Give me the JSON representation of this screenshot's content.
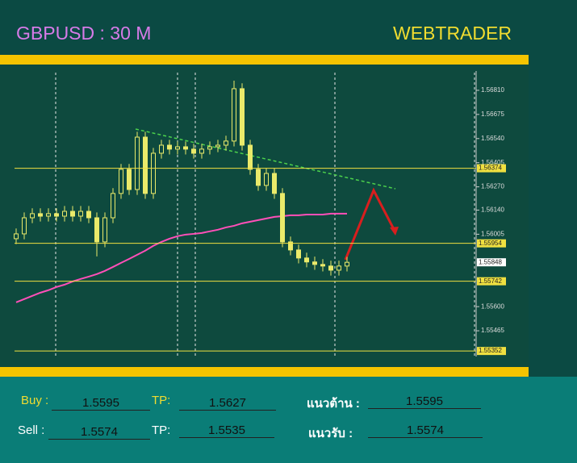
{
  "header": {
    "symbol": "GBPUSD : 30 M",
    "brand": "WEBTRADER"
  },
  "chart_data": {
    "type": "candlestick",
    "color": "#eaea6a",
    "open": [
      1.5598,
      1.56007,
      1.56097,
      1.5612,
      1.56106,
      1.5612,
      1.56106,
      1.56133,
      1.56106,
      1.56133,
      1.56097,
      1.55962,
      1.56097,
      1.56233,
      1.56368,
      1.56255,
      1.56548,
      1.56233,
      1.56458,
      1.56503,
      1.56481,
      1.56494,
      1.56481,
      1.56458,
      1.56481,
      1.56494,
      1.56503,
      1.56526,
      1.56819,
      1.56503,
      1.56368,
      1.56278,
      1.56345,
      1.56233,
      1.55962,
      1.55917,
      1.55872,
      1.5585,
      1.55836,
      1.55827,
      1.55804,
      1.55827
    ],
    "high": [
      1.56037,
      1.56127,
      1.5615,
      1.5615,
      1.5615,
      1.5615,
      1.56163,
      1.56163,
      1.56163,
      1.56163,
      1.56127,
      1.56127,
      1.56263,
      1.56398,
      1.56398,
      1.56578,
      1.56578,
      1.56488,
      1.56533,
      1.56533,
      1.56524,
      1.56524,
      1.56511,
      1.56511,
      1.56524,
      1.56533,
      1.56556,
      1.56864,
      1.56849,
      1.56533,
      1.56398,
      1.56375,
      1.56375,
      1.56263,
      1.55992,
      1.55947,
      1.55902,
      1.5588,
      1.55866,
      1.55857,
      1.55857,
      1.55878
    ],
    "low": [
      1.5595,
      1.55977,
      1.56067,
      1.56076,
      1.56076,
      1.56076,
      1.56076,
      1.56076,
      1.56076,
      1.56067,
      1.55881,
      1.55932,
      1.56067,
      1.56203,
      1.56225,
      1.56225,
      1.56203,
      1.56203,
      1.56428,
      1.56451,
      1.56451,
      1.56451,
      1.56428,
      1.56428,
      1.56451,
      1.56464,
      1.56473,
      1.56496,
      1.56473,
      1.56338,
      1.56248,
      1.56248,
      1.56203,
      1.55932,
      1.55887,
      1.55842,
      1.5582,
      1.55806,
      1.55797,
      1.55774,
      1.55774,
      1.55797
    ],
    "close": [
      1.56007,
      1.56097,
      1.5612,
      1.56106,
      1.5612,
      1.56106,
      1.56133,
      1.56106,
      1.56133,
      1.56097,
      1.55962,
      1.56097,
      1.56233,
      1.56368,
      1.56255,
      1.56548,
      1.56233,
      1.56458,
      1.56503,
      1.56481,
      1.56494,
      1.56481,
      1.56458,
      1.56481,
      1.56494,
      1.56503,
      1.56526,
      1.56819,
      1.56503,
      1.56368,
      1.56278,
      1.56345,
      1.56233,
      1.55962,
      1.55917,
      1.55872,
      1.5585,
      1.55836,
      1.55827,
      1.55804,
      1.55827,
      1.55848
    ],
    "moving_average": {
      "color": "#ff4fb8",
      "values": [
        1.55624,
        1.55642,
        1.5566,
        1.55678,
        1.55692,
        1.5571,
        1.55723,
        1.55741,
        1.55755,
        1.55768,
        1.55782,
        1.558,
        1.55822,
        1.55845,
        1.55867,
        1.5589,
        1.55913,
        1.5594,
        1.55962,
        1.5598,
        1.55994,
        1.56003,
        1.56007,
        1.56012,
        1.56021,
        1.5603,
        1.56043,
        1.56052,
        1.56066,
        1.56075,
        1.56084,
        1.56093,
        1.56102,
        1.56106,
        1.56111,
        1.56111,
        1.56115,
        1.56115,
        1.56115,
        1.5612,
        1.5612,
        1.5612
      ]
    },
    "levels": [
      1.56374,
      1.55954,
      1.55742,
      1.55352
    ],
    "level_color": "#f0e040",
    "current_price": 1.55848,
    "ylim": [
      1.5533,
      1.56918
    ],
    "yticks": [
      {
        "value": 1.5681,
        "label": "1.56810"
      },
      {
        "value": 1.56675,
        "label": "1.56675"
      },
      {
        "value": 1.5654,
        "label": "1.56540"
      },
      {
        "value": 1.56405,
        "label": "1.56405"
      },
      {
        "value": 1.5627,
        "label": "1.56270"
      },
      {
        "value": 1.5614,
        "label": "1.56140"
      },
      {
        "value": 1.56005,
        "label": "1.56005"
      },
      {
        "value": 1.556,
        "label": "1.55600"
      },
      1.55465
    ]
  },
  "trade_panel": {
    "buy_label": "Buy :",
    "buy": 1.5595,
    "tp_label": "TP:",
    "buy_tp": 1.5627,
    "resistance_label": "แนวต้าน :",
    "resistance": 1.5595,
    "sell_label": "Sell :",
    "sell": 1.5574,
    "sell_tp": 1.5535,
    "support_label": "แนวรับ  :",
    "support": 1.5574
  }
}
